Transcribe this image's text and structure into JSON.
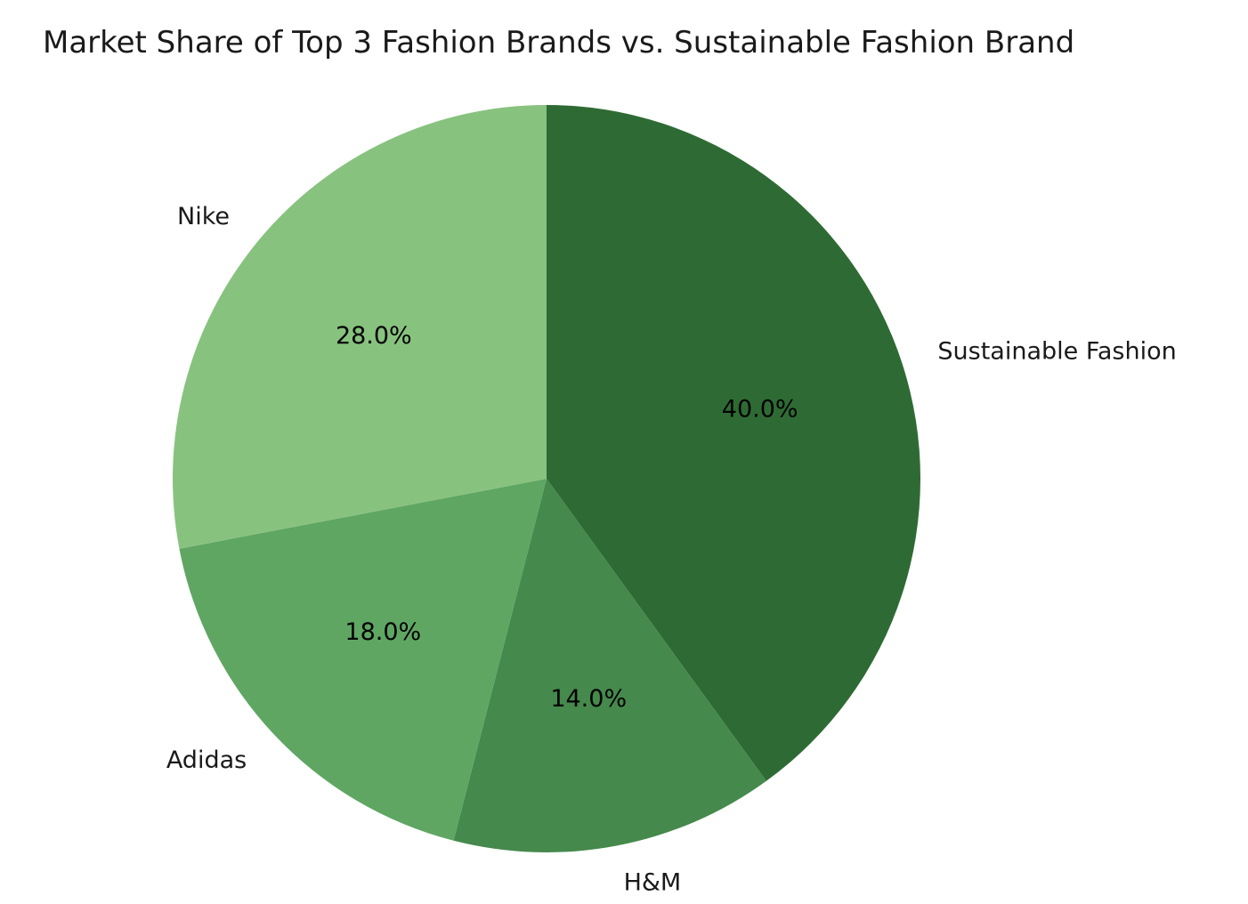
{
  "chart_data": {
    "type": "pie",
    "title": "Market Share of Top 3 Fashion Brands vs. Sustainable Fashion Brand",
    "start_angle_deg": 90,
    "direction": "clockwise",
    "slices": [
      {
        "label": "Sustainable Fashion",
        "value": 40.0,
        "pct_label": "40.0%",
        "color": "#2e6b34"
      },
      {
        "label": "H&M",
        "value": 14.0,
        "pct_label": "14.0%",
        "color": "#45894c"
      },
      {
        "label": "Adidas",
        "value": 18.0,
        "pct_label": "18.0%",
        "color": "#5fa663"
      },
      {
        "label": "Nike",
        "value": 28.0,
        "pct_label": "28.0%",
        "color": "#88c27f"
      }
    ]
  }
}
